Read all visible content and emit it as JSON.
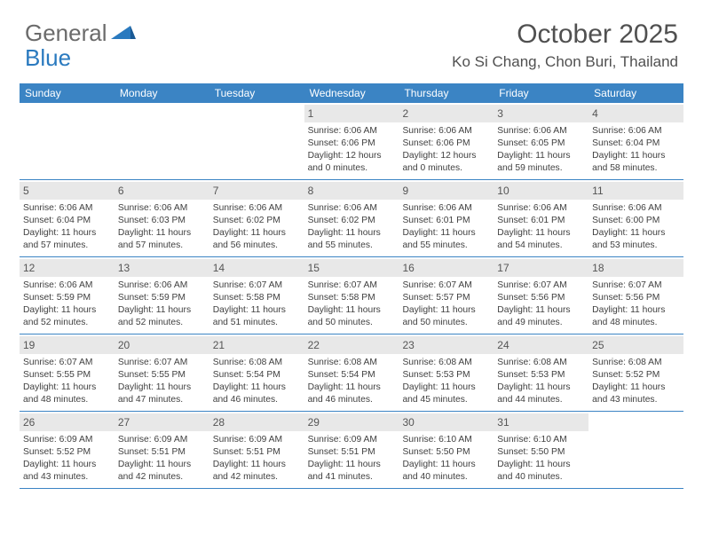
{
  "logo": {
    "text1": "General",
    "text2": "Blue",
    "shape_color": "#2a7abf"
  },
  "title": "October 2025",
  "location": "Ko Si Chang, Chon Buri, Thailand",
  "header_bg": "#3b84c4",
  "weekday_text_color": "#ffffff",
  "daynum_bg": "#e8e8e8",
  "border_color": "#3b84c4",
  "weekdays": [
    "Sunday",
    "Monday",
    "Tuesday",
    "Wednesday",
    "Thursday",
    "Friday",
    "Saturday"
  ],
  "weeks": [
    [
      null,
      null,
      null,
      {
        "n": "1",
        "sr": "Sunrise: 6:06 AM",
        "ss": "Sunset: 6:06 PM",
        "d1": "Daylight: 12 hours",
        "d2": "and 0 minutes."
      },
      {
        "n": "2",
        "sr": "Sunrise: 6:06 AM",
        "ss": "Sunset: 6:06 PM",
        "d1": "Daylight: 12 hours",
        "d2": "and 0 minutes."
      },
      {
        "n": "3",
        "sr": "Sunrise: 6:06 AM",
        "ss": "Sunset: 6:05 PM",
        "d1": "Daylight: 11 hours",
        "d2": "and 59 minutes."
      },
      {
        "n": "4",
        "sr": "Sunrise: 6:06 AM",
        "ss": "Sunset: 6:04 PM",
        "d1": "Daylight: 11 hours",
        "d2": "and 58 minutes."
      }
    ],
    [
      {
        "n": "5",
        "sr": "Sunrise: 6:06 AM",
        "ss": "Sunset: 6:04 PM",
        "d1": "Daylight: 11 hours",
        "d2": "and 57 minutes."
      },
      {
        "n": "6",
        "sr": "Sunrise: 6:06 AM",
        "ss": "Sunset: 6:03 PM",
        "d1": "Daylight: 11 hours",
        "d2": "and 57 minutes."
      },
      {
        "n": "7",
        "sr": "Sunrise: 6:06 AM",
        "ss": "Sunset: 6:02 PM",
        "d1": "Daylight: 11 hours",
        "d2": "and 56 minutes."
      },
      {
        "n": "8",
        "sr": "Sunrise: 6:06 AM",
        "ss": "Sunset: 6:02 PM",
        "d1": "Daylight: 11 hours",
        "d2": "and 55 minutes."
      },
      {
        "n": "9",
        "sr": "Sunrise: 6:06 AM",
        "ss": "Sunset: 6:01 PM",
        "d1": "Daylight: 11 hours",
        "d2": "and 55 minutes."
      },
      {
        "n": "10",
        "sr": "Sunrise: 6:06 AM",
        "ss": "Sunset: 6:01 PM",
        "d1": "Daylight: 11 hours",
        "d2": "and 54 minutes."
      },
      {
        "n": "11",
        "sr": "Sunrise: 6:06 AM",
        "ss": "Sunset: 6:00 PM",
        "d1": "Daylight: 11 hours",
        "d2": "and 53 minutes."
      }
    ],
    [
      {
        "n": "12",
        "sr": "Sunrise: 6:06 AM",
        "ss": "Sunset: 5:59 PM",
        "d1": "Daylight: 11 hours",
        "d2": "and 52 minutes."
      },
      {
        "n": "13",
        "sr": "Sunrise: 6:06 AM",
        "ss": "Sunset: 5:59 PM",
        "d1": "Daylight: 11 hours",
        "d2": "and 52 minutes."
      },
      {
        "n": "14",
        "sr": "Sunrise: 6:07 AM",
        "ss": "Sunset: 5:58 PM",
        "d1": "Daylight: 11 hours",
        "d2": "and 51 minutes."
      },
      {
        "n": "15",
        "sr": "Sunrise: 6:07 AM",
        "ss": "Sunset: 5:58 PM",
        "d1": "Daylight: 11 hours",
        "d2": "and 50 minutes."
      },
      {
        "n": "16",
        "sr": "Sunrise: 6:07 AM",
        "ss": "Sunset: 5:57 PM",
        "d1": "Daylight: 11 hours",
        "d2": "and 50 minutes."
      },
      {
        "n": "17",
        "sr": "Sunrise: 6:07 AM",
        "ss": "Sunset: 5:56 PM",
        "d1": "Daylight: 11 hours",
        "d2": "and 49 minutes."
      },
      {
        "n": "18",
        "sr": "Sunrise: 6:07 AM",
        "ss": "Sunset: 5:56 PM",
        "d1": "Daylight: 11 hours",
        "d2": "and 48 minutes."
      }
    ],
    [
      {
        "n": "19",
        "sr": "Sunrise: 6:07 AM",
        "ss": "Sunset: 5:55 PM",
        "d1": "Daylight: 11 hours",
        "d2": "and 48 minutes."
      },
      {
        "n": "20",
        "sr": "Sunrise: 6:07 AM",
        "ss": "Sunset: 5:55 PM",
        "d1": "Daylight: 11 hours",
        "d2": "and 47 minutes."
      },
      {
        "n": "21",
        "sr": "Sunrise: 6:08 AM",
        "ss": "Sunset: 5:54 PM",
        "d1": "Daylight: 11 hours",
        "d2": "and 46 minutes."
      },
      {
        "n": "22",
        "sr": "Sunrise: 6:08 AM",
        "ss": "Sunset: 5:54 PM",
        "d1": "Daylight: 11 hours",
        "d2": "and 46 minutes."
      },
      {
        "n": "23",
        "sr": "Sunrise: 6:08 AM",
        "ss": "Sunset: 5:53 PM",
        "d1": "Daylight: 11 hours",
        "d2": "and 45 minutes."
      },
      {
        "n": "24",
        "sr": "Sunrise: 6:08 AM",
        "ss": "Sunset: 5:53 PM",
        "d1": "Daylight: 11 hours",
        "d2": "and 44 minutes."
      },
      {
        "n": "25",
        "sr": "Sunrise: 6:08 AM",
        "ss": "Sunset: 5:52 PM",
        "d1": "Daylight: 11 hours",
        "d2": "and 43 minutes."
      }
    ],
    [
      {
        "n": "26",
        "sr": "Sunrise: 6:09 AM",
        "ss": "Sunset: 5:52 PM",
        "d1": "Daylight: 11 hours",
        "d2": "and 43 minutes."
      },
      {
        "n": "27",
        "sr": "Sunrise: 6:09 AM",
        "ss": "Sunset: 5:51 PM",
        "d1": "Daylight: 11 hours",
        "d2": "and 42 minutes."
      },
      {
        "n": "28",
        "sr": "Sunrise: 6:09 AM",
        "ss": "Sunset: 5:51 PM",
        "d1": "Daylight: 11 hours",
        "d2": "and 42 minutes."
      },
      {
        "n": "29",
        "sr": "Sunrise: 6:09 AM",
        "ss": "Sunset: 5:51 PM",
        "d1": "Daylight: 11 hours",
        "d2": "and 41 minutes."
      },
      {
        "n": "30",
        "sr": "Sunrise: 6:10 AM",
        "ss": "Sunset: 5:50 PM",
        "d1": "Daylight: 11 hours",
        "d2": "and 40 minutes."
      },
      {
        "n": "31",
        "sr": "Sunrise: 6:10 AM",
        "ss": "Sunset: 5:50 PM",
        "d1": "Daylight: 11 hours",
        "d2": "and 40 minutes."
      },
      null
    ]
  ]
}
